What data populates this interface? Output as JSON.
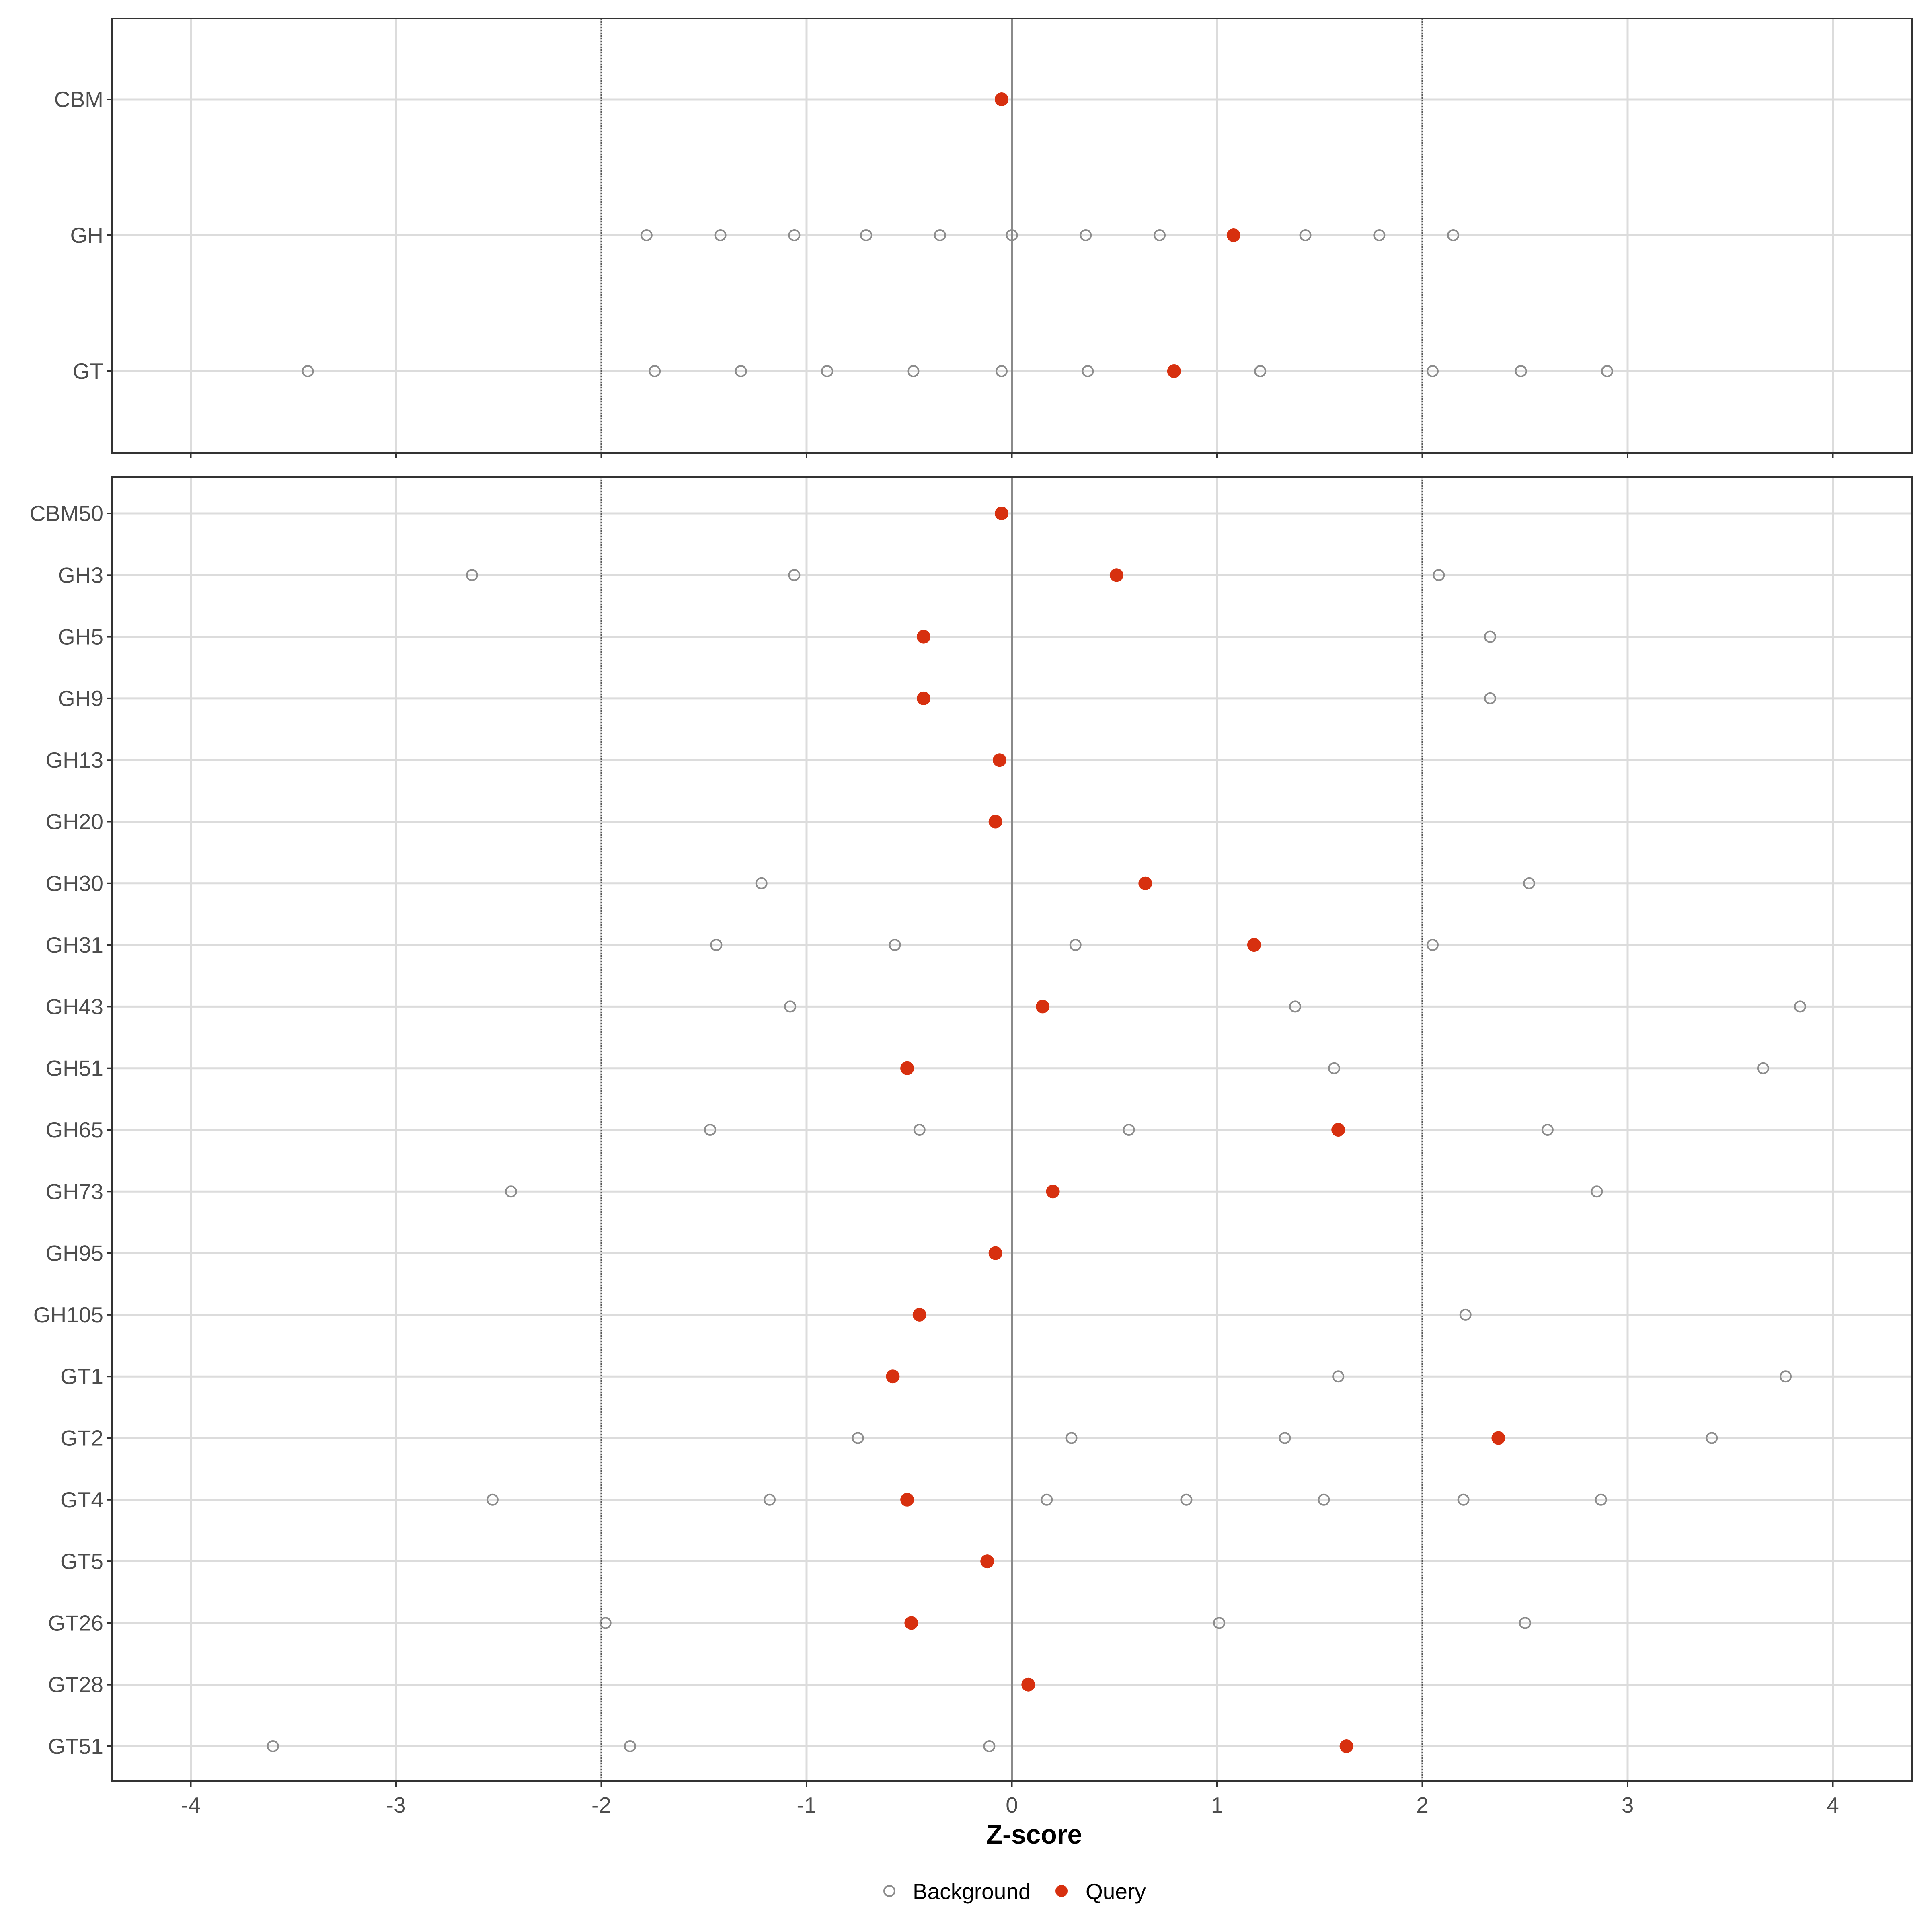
{
  "chart_data": {
    "type": "scatter",
    "xlabel": "Z-score",
    "xlim": [
      -4.4,
      4.4
    ],
    "xticks": [
      -4,
      -3,
      -2,
      -1,
      0,
      1,
      2,
      3,
      4
    ],
    "reference_lines": {
      "threshold_dotted": [
        -2,
        2
      ],
      "zero_solid": 0
    },
    "grid": true,
    "legend": {
      "placement": "bottom",
      "entries": [
        "Background",
        "Query"
      ]
    },
    "colors": {
      "background_point": "#8c8c8c",
      "query_point": "#d7300f",
      "gridline": "#dcdcdc",
      "panel_border": "#333333",
      "axis_text": "#4d4d4d"
    },
    "panels": [
      {
        "categories": [
          "CBM",
          "GH",
          "GT"
        ],
        "series": [
          {
            "name": "Background",
            "points": [
              {
                "category": "GH",
                "x": -1.78
              },
              {
                "category": "GH",
                "x": -1.42
              },
              {
                "category": "GH",
                "x": -1.06
              },
              {
                "category": "GH",
                "x": -0.71
              },
              {
                "category": "GH",
                "x": -0.35
              },
              {
                "category": "GH",
                "x": 0.0
              },
              {
                "category": "GH",
                "x": 0.36
              },
              {
                "category": "GH",
                "x": 0.72
              },
              {
                "category": "GH",
                "x": 1.43
              },
              {
                "category": "GH",
                "x": 1.79
              },
              {
                "category": "GH",
                "x": 2.15
              },
              {
                "category": "GT",
                "x": -3.43
              },
              {
                "category": "GT",
                "x": -1.74
              },
              {
                "category": "GT",
                "x": -1.32
              },
              {
                "category": "GT",
                "x": -0.9
              },
              {
                "category": "GT",
                "x": -0.48
              },
              {
                "category": "GT",
                "x": -0.05
              },
              {
                "category": "GT",
                "x": 0.37
              },
              {
                "category": "GT",
                "x": 1.21
              },
              {
                "category": "GT",
                "x": 2.05
              },
              {
                "category": "GT",
                "x": 2.48
              },
              {
                "category": "GT",
                "x": 2.9
              }
            ]
          },
          {
            "name": "Query",
            "points": [
              {
                "category": "CBM",
                "x": -0.05
              },
              {
                "category": "GH",
                "x": 1.08
              },
              {
                "category": "GT",
                "x": 0.79
              }
            ]
          }
        ]
      },
      {
        "categories": [
          "CBM50",
          "GH3",
          "GH5",
          "GH9",
          "GH13",
          "GH20",
          "GH30",
          "GH31",
          "GH43",
          "GH51",
          "GH65",
          "GH73",
          "GH95",
          "GH105",
          "GT1",
          "GT2",
          "GT4",
          "GT5",
          "GT26",
          "GT28",
          "GT51"
        ],
        "series": [
          {
            "name": "Background",
            "points": [
              {
                "category": "GH3",
                "x": -2.63
              },
              {
                "category": "GH3",
                "x": -1.06
              },
              {
                "category": "GH3",
                "x": 2.08
              },
              {
                "category": "GH5",
                "x": 2.33
              },
              {
                "category": "GH9",
                "x": 2.33
              },
              {
                "category": "GH30",
                "x": -1.22
              },
              {
                "category": "GH30",
                "x": 2.52
              },
              {
                "category": "GH31",
                "x": -1.44
              },
              {
                "category": "GH31",
                "x": -0.57
              },
              {
                "category": "GH31",
                "x": 0.31
              },
              {
                "category": "GH31",
                "x": 2.05
              },
              {
                "category": "GH43",
                "x": -1.08
              },
              {
                "category": "GH43",
                "x": 1.38
              },
              {
                "category": "GH43",
                "x": 3.84
              },
              {
                "category": "GH51",
                "x": 1.57
              },
              {
                "category": "GH51",
                "x": 3.66
              },
              {
                "category": "GH65",
                "x": -1.47
              },
              {
                "category": "GH65",
                "x": -0.45
              },
              {
                "category": "GH65",
                "x": 0.57
              },
              {
                "category": "GH65",
                "x": 2.61
              },
              {
                "category": "GH73",
                "x": -2.44
              },
              {
                "category": "GH73",
                "x": 2.85
              },
              {
                "category": "GH105",
                "x": 2.21
              },
              {
                "category": "GT1",
                "x": 1.59
              },
              {
                "category": "GT1",
                "x": 3.77
              },
              {
                "category": "GT2",
                "x": -0.75
              },
              {
                "category": "GT2",
                "x": 0.29
              },
              {
                "category": "GT2",
                "x": 1.33
              },
              {
                "category": "GT2",
                "x": 3.41
              },
              {
                "category": "GT4",
                "x": -2.53
              },
              {
                "category": "GT4",
                "x": -1.18
              },
              {
                "category": "GT4",
                "x": 0.17
              },
              {
                "category": "GT4",
                "x": 0.85
              },
              {
                "category": "GT4",
                "x": 1.52
              },
              {
                "category": "GT4",
                "x": 2.2
              },
              {
                "category": "GT4",
                "x": 2.87
              },
              {
                "category": "GT26",
                "x": -1.98
              },
              {
                "category": "GT26",
                "x": 1.01
              },
              {
                "category": "GT26",
                "x": 2.5
              },
              {
                "category": "GT51",
                "x": -3.6
              },
              {
                "category": "GT51",
                "x": -1.86
              },
              {
                "category": "GT51",
                "x": -0.11
              }
            ]
          },
          {
            "name": "Query",
            "points": [
              {
                "category": "CBM50",
                "x": -0.05
              },
              {
                "category": "GH3",
                "x": 0.51
              },
              {
                "category": "GH5",
                "x": -0.43
              },
              {
                "category": "GH9",
                "x": -0.43
              },
              {
                "category": "GH13",
                "x": -0.06
              },
              {
                "category": "GH20",
                "x": -0.08
              },
              {
                "category": "GH30",
                "x": 0.65
              },
              {
                "category": "GH31",
                "x": 1.18
              },
              {
                "category": "GH43",
                "x": 0.15
              },
              {
                "category": "GH51",
                "x": -0.51
              },
              {
                "category": "GH65",
                "x": 1.59
              },
              {
                "category": "GH73",
                "x": 0.2
              },
              {
                "category": "GH95",
                "x": -0.08
              },
              {
                "category": "GH105",
                "x": -0.45
              },
              {
                "category": "GT1",
                "x": -0.58
              },
              {
                "category": "GT2",
                "x": 2.37
              },
              {
                "category": "GT4",
                "x": -0.51
              },
              {
                "category": "GT5",
                "x": -0.12
              },
              {
                "category": "GT26",
                "x": -0.49
              },
              {
                "category": "GT28",
                "x": 0.08
              },
              {
                "category": "GT51",
                "x": 1.63
              }
            ]
          }
        ]
      }
    ]
  }
}
